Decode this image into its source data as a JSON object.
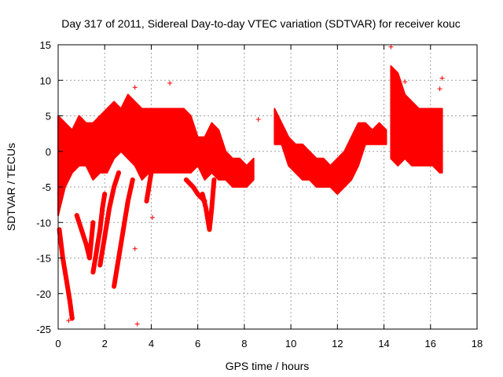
{
  "chart_data": {
    "type": "scatter",
    "title": "Day 317 of 2011, Sidereal Day-to-day VTEC variation (SDTVAR) for receiver kouc",
    "xlabel": "GPS time / hours",
    "ylabel": "SDTVAR / TECUs",
    "xlim": [
      0,
      18
    ],
    "ylim": [
      -25,
      15
    ],
    "xticks": [
      0,
      2,
      4,
      6,
      8,
      10,
      12,
      14,
      16,
      18
    ],
    "yticks": [
      -25,
      -20,
      -15,
      -10,
      -5,
      0,
      5,
      10,
      15
    ],
    "xtick_labels": [
      "0",
      "2",
      "4",
      "6",
      "8",
      "10",
      "12",
      "14",
      "16",
      "18"
    ],
    "ytick_labels": [
      "-25",
      "-20",
      "-15",
      "-10",
      "-5",
      "0",
      "5",
      "10",
      "15"
    ],
    "grid": true,
    "marker": "+",
    "color": "#ff0000",
    "series": [
      {
        "name": "SDTVAR",
        "bands": [
          {
            "x": [
              0.0,
              0.3,
              0.6,
              0.9,
              1.2,
              1.5,
              1.8,
              2.1,
              2.4,
              2.7,
              3.0,
              3.3,
              3.6,
              3.9,
              4.2,
              4.5,
              4.8,
              5.1,
              5.4,
              5.7,
              6.0,
              6.3,
              6.6,
              6.9,
              7.2,
              7.5,
              7.8,
              8.1,
              8.4
            ],
            "low": [
              -9,
              -5,
              -3,
              -2,
              -2,
              -4,
              -3,
              -3,
              -1,
              0,
              -1,
              -2,
              -4,
              -3,
              -3,
              -3,
              -3,
              -3,
              -3,
              -3,
              -2,
              -4,
              -3,
              -4,
              -4,
              -5,
              -5,
              -5,
              -4
            ],
            "high": [
              5,
              4,
              3,
              5,
              4,
              4,
              5,
              6,
              7,
              6,
              8,
              7,
              6,
              6,
              6,
              6,
              6,
              6,
              6,
              5,
              2,
              2,
              4,
              3,
              0,
              -1,
              -1,
              -2,
              -1
            ]
          },
          {
            "x": [
              9.3,
              9.6,
              9.9,
              10.2,
              10.5,
              10.8,
              11.1,
              11.4,
              11.7,
              12.0,
              12.3,
              12.6,
              12.9,
              13.2,
              13.5,
              13.8,
              14.1
            ],
            "low": [
              1,
              1,
              -2,
              -3,
              -4,
              -4,
              -5,
              -5,
              -5,
              -6,
              -5,
              -4,
              -2,
              1,
              1,
              1,
              1
            ],
            "high": [
              6,
              4,
              2,
              1,
              1,
              0,
              -1,
              -1,
              -2,
              -1,
              0,
              2,
              4,
              4,
              3,
              4,
              3
            ]
          },
          {
            "x": [
              14.3,
              14.6,
              14.9,
              15.2,
              15.5,
              15.8,
              16.1,
              16.4,
              16.5
            ],
            "low": [
              -1,
              -2,
              -1,
              -2,
              -2,
              -2,
              -2,
              -3,
              -3
            ],
            "high": [
              12,
              11,
              8,
              7,
              6,
              6,
              6,
              6,
              6
            ]
          }
        ],
        "spikes": [
          {
            "x": [
              0.05,
              0.2,
              0.35,
              0.5,
              0.6
            ],
            "y": [
              -11,
              -15,
              -18,
              -21,
              -23.5
            ]
          },
          {
            "x": [
              0.8,
              1.0,
              1.2,
              1.35,
              1.5
            ],
            "y": [
              -9,
              -11,
              -13,
              -15,
              -10
            ]
          },
          {
            "x": [
              1.5,
              1.6,
              1.7,
              1.8,
              1.9,
              2.0
            ],
            "y": [
              -17,
              -15,
              -13,
              -11,
              -8,
              -6
            ]
          },
          {
            "x": [
              2.4,
              2.6,
              2.8,
              3.0,
              3.2
            ],
            "y": [
              -19,
              -15,
              -11,
              -7,
              -4
            ]
          },
          {
            "x": [
              1.8,
              2.0,
              2.2,
              2.4,
              2.6
            ],
            "y": [
              -16,
              -12,
              -8,
              -5,
              -3
            ]
          },
          {
            "x": [
              3.8,
              3.9,
              4.0
            ],
            "y": [
              -7,
              -5,
              -3
            ]
          },
          {
            "x": [
              6.2,
              6.35,
              6.5,
              6.6,
              6.7
            ],
            "y": [
              -6,
              -8,
              -11,
              -8,
              -4
            ]
          },
          {
            "x": [
              5.5,
              5.8,
              6.0,
              6.3
            ],
            "y": [
              -4,
              -5,
              -6,
              -7
            ]
          }
        ],
        "outliers": [
          {
            "x": 14.3,
            "y": 14.7
          },
          {
            "x": 4.8,
            "y": 9.6
          },
          {
            "x": 3.3,
            "y": 9.0
          },
          {
            "x": 3.4,
            "y": -24.3
          },
          {
            "x": 3.3,
            "y": -13.7
          },
          {
            "x": 4.05,
            "y": -9.3
          },
          {
            "x": 16.5,
            "y": 10.3
          },
          {
            "x": 16.4,
            "y": 8.8
          },
          {
            "x": 8.6,
            "y": 4.5
          },
          {
            "x": 14.9,
            "y": 9.8
          },
          {
            "x": 0.45,
            "y": -23.8
          }
        ]
      }
    ]
  }
}
